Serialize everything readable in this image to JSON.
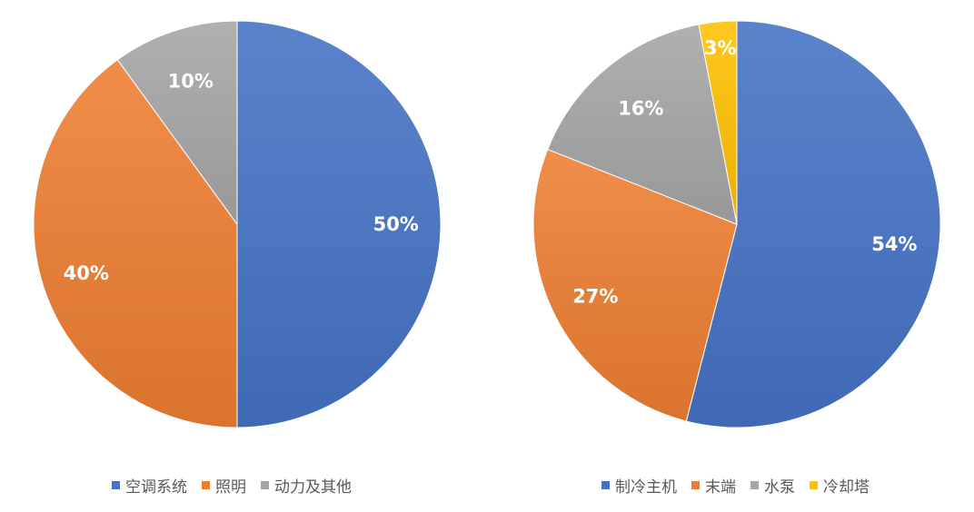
{
  "chart_data": [
    {
      "type": "pie",
      "categories": [
        "空调系统",
        "照明",
        "动力及其他"
      ],
      "values": [
        50,
        40,
        10
      ],
      "data_labels": [
        "50%",
        "40%",
        "10%"
      ],
      "colors": [
        "#4472C4",
        "#ED7D31",
        "#A5A5A5"
      ],
      "legend_position": "bottom",
      "start_angle": "12 o'clock",
      "direction": "clockwise"
    },
    {
      "type": "pie",
      "categories": [
        "制冷主机",
        "末端",
        "水泵",
        "冷却塔"
      ],
      "values": [
        54,
        27,
        16,
        3
      ],
      "data_labels": [
        "54%",
        "27%",
        "16%",
        "3%"
      ],
      "colors": [
        "#4472C4",
        "#ED7D31",
        "#A5A5A5",
        "#FFC000"
      ],
      "legend_position": "bottom",
      "start_angle": "12 o'clock",
      "direction": "clockwise"
    }
  ]
}
